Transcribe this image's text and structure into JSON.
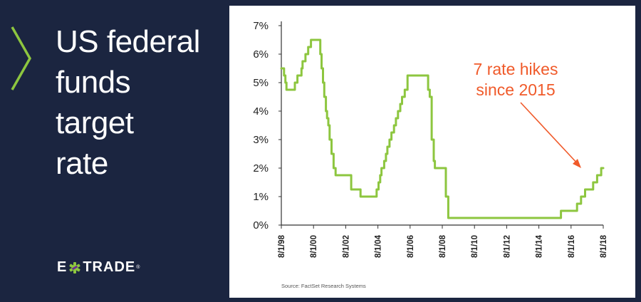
{
  "brand": {
    "title_lines": [
      "US federal",
      "funds",
      "target",
      "rate"
    ],
    "logo_text_before": "E",
    "logo_text_after": "TRADE",
    "logo_tm": "®",
    "accent_color": "#8dc63f",
    "panel_color": "#1b2540"
  },
  "chart_data": {
    "type": "line",
    "title": "",
    "xlabel": "",
    "ylabel": "",
    "ylim": [
      0,
      7
    ],
    "y_ticks": [
      "0%",
      "1%",
      "2%",
      "3%",
      "4%",
      "5%",
      "6%",
      "7%"
    ],
    "x_ticks": [
      "8/1/98",
      "8/1/00",
      "8/1/02",
      "8/1/04",
      "8/1/06",
      "8/1/08",
      "8/1/10",
      "8/1/12",
      "8/1/14",
      "8/1/16",
      "8/1/18"
    ],
    "x_tick_values": [
      1998.58,
      2000.58,
      2002.58,
      2004.58,
      2006.58,
      2008.58,
      2010.58,
      2012.58,
      2014.58,
      2016.58,
      2018.58
    ],
    "xlim": [
      1998.58,
      2018.58
    ],
    "grid": false,
    "line_color": "#8dc63f",
    "series": [
      {
        "x": [
          1998.58,
          1998.75,
          1998.83,
          1998.9,
          1999.42,
          1999.58,
          1999.83,
          1999.9,
          2000.08,
          2000.25,
          2000.42,
          2001.0,
          2001.08,
          2001.17,
          2001.25,
          2001.35,
          2001.42,
          2001.5,
          2001.58,
          2001.7,
          2001.83,
          2001.95,
          2002.92,
          2003.5,
          2004.5,
          2004.62,
          2004.72,
          2004.8,
          2004.97,
          2005.08,
          2005.17,
          2005.3,
          2005.42,
          2005.58,
          2005.7,
          2005.83,
          2005.97,
          2006.08,
          2006.25,
          2006.42,
          2007.7,
          2007.8,
          2007.92,
          2008.05,
          2008.12,
          2008.25,
          2008.33,
          2008.8,
          2008.95,
          2015.95,
          2016.95,
          2017.2,
          2017.45,
          2017.95,
          2018.2,
          2018.45,
          2018.58
        ],
        "y": [
          5.5,
          5.25,
          5.0,
          4.75,
          5.0,
          5.25,
          5.5,
          5.75,
          6.0,
          6.25,
          6.5,
          6.0,
          5.5,
          5.0,
          4.5,
          4.0,
          3.75,
          3.5,
          3.0,
          2.5,
          2.0,
          1.75,
          1.25,
          1.0,
          1.25,
          1.5,
          1.75,
          2.0,
          2.25,
          2.5,
          2.75,
          3.0,
          3.25,
          3.5,
          3.75,
          4.0,
          4.25,
          4.5,
          4.75,
          5.25,
          4.75,
          4.5,
          3.0,
          2.25,
          2.0,
          2.0,
          2.0,
          1.0,
          0.25,
          0.5,
          0.75,
          1.0,
          1.25,
          1.5,
          1.75,
          2.0,
          2.0
        ]
      }
    ],
    "annotation": {
      "line1": "7 rate hikes",
      "line2": "since 2015",
      "color": "#f05a2a"
    },
    "source": "Source: FactSet Research Systems"
  }
}
